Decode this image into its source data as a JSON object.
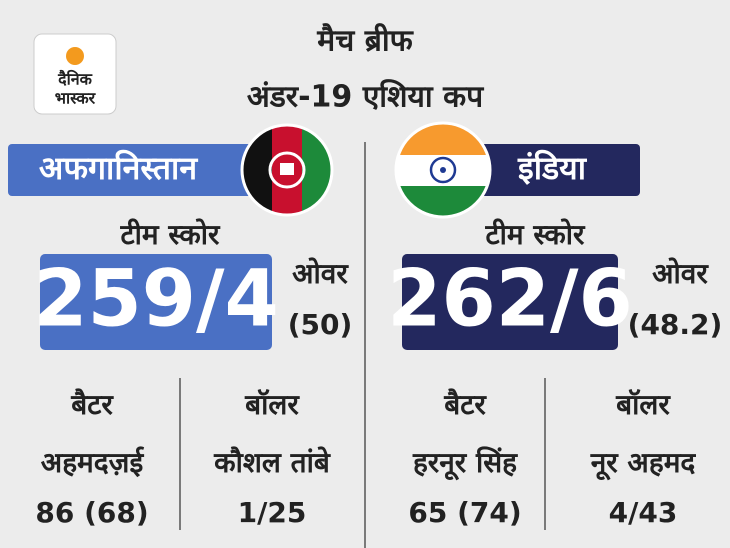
{
  "header": {
    "title": "मैच ब्रीफ",
    "subtitle": "अंडर-19 एशिया कप",
    "logo": [
      "दैनिक",
      "भास्कर"
    ]
  },
  "teams": [
    {
      "name": "अफगानिस्तान",
      "score_label": "टीम स्कोर",
      "score": "259/4",
      "overs_label": "ओवर",
      "overs": "(50)",
      "batter_label": "बैटर",
      "batter": "अहमदज़ई",
      "batter_figures": "86 (68)",
      "bowler_label": "बॉलर",
      "bowler": "कौशल तांबे",
      "bowler_figures": "1/25"
    },
    {
      "name": "इंडिया",
      "score_label": "टीम स्कोर",
      "score": "262/6",
      "overs_label": "ओवर",
      "overs": "(48.2)",
      "batter_label": "बैटर",
      "batter": "हरनूर सिंह",
      "batter_figures": "65 (74)",
      "bowler_label": "बॉलर",
      "bowler": "नूर अहमद",
      "bowler_figures": "4/43"
    }
  ]
}
